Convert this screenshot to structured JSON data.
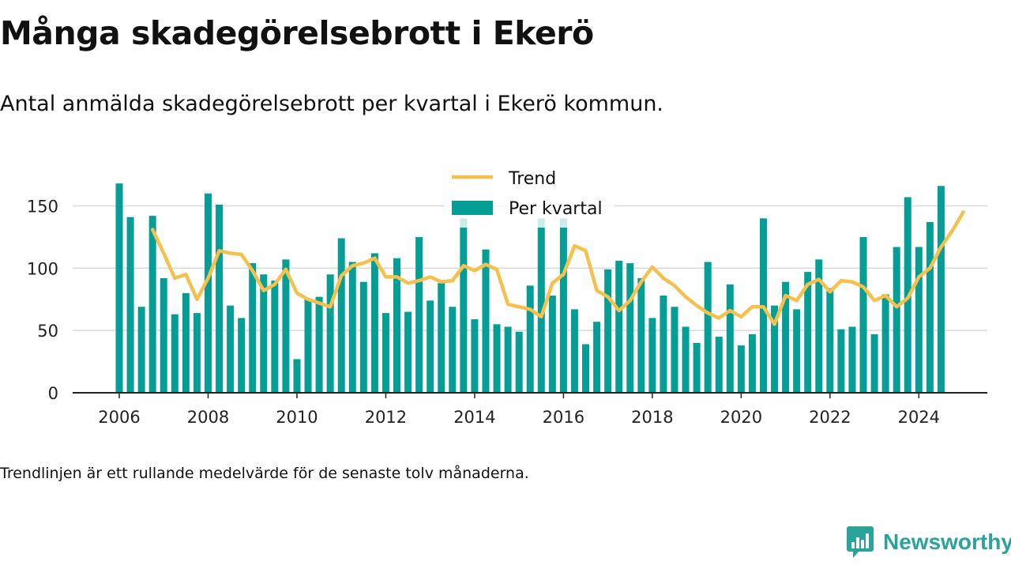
{
  "title": "Många skadegörelsebrott i Ekerö",
  "subtitle": "Antal anmälda skadegörelsebrott per kvartal i Ekerö kommun.",
  "footnote": "Trendlinjen är ett rullande medelvärde för de senaste tolv månaderna.",
  "logo": {
    "text": "Newsworthy",
    "icon": "bar-chart-icon"
  },
  "colors": {
    "bars": "#049e96",
    "trend": "#f5c04c",
    "grid": "#d9d9d9",
    "axis": "#222222",
    "logo": "#2aa39a"
  },
  "chart_data": {
    "type": "bar",
    "title": "Många skadegörelsebrott i Ekerö",
    "xlabel": "",
    "ylabel": "",
    "ylim": [
      0,
      170
    ],
    "yticks": [
      0,
      50,
      100,
      150
    ],
    "xtick_labels": [
      "2006",
      "2008",
      "2010",
      "2012",
      "2014",
      "2016",
      "2018",
      "2020",
      "2022",
      "2024"
    ],
    "legend_position": "top-center",
    "grid": true,
    "x_start": {
      "year": 2006,
      "quarter": 1
    },
    "series": [
      {
        "name": "Per kvartal",
        "kind": "bar",
        "color": "#049e96",
        "values": [
          168,
          141,
          69,
          142,
          92,
          63,
          80,
          64,
          160,
          151,
          70,
          60,
          104,
          95,
          90,
          107,
          27,
          75,
          77,
          95,
          124,
          105,
          89,
          112,
          64,
          108,
          65,
          125,
          74,
          88,
          69,
          140,
          59,
          115,
          55,
          53,
          49,
          86,
          140,
          78,
          140,
          67,
          39,
          57,
          99,
          106,
          104,
          92,
          60,
          78,
          69,
          53,
          40,
          105,
          45,
          87,
          38,
          47,
          140,
          70,
          89,
          67,
          97,
          107,
          84,
          51,
          53,
          125,
          47,
          79,
          117,
          157,
          117,
          137,
          166
        ]
      },
      {
        "name": "Trend",
        "kind": "line",
        "color": "#f5c04c",
        "start_index": 3,
        "values": [
          131,
          112,
          92,
          95,
          75,
          92,
          114,
          112,
          111,
          98,
          82,
          87,
          99,
          80,
          75,
          72,
          69,
          94,
          102,
          104,
          108,
          93,
          93,
          88,
          90,
          93,
          89,
          90,
          102,
          98,
          103,
          99,
          71,
          69,
          67,
          61,
          88,
          95,
          118,
          114,
          82,
          77,
          66,
          74,
          89,
          101,
          92,
          86,
          77,
          70,
          64,
          60,
          66,
          61,
          69,
          69,
          55,
          78,
          74,
          87,
          91,
          81,
          90,
          89,
          85,
          74,
          78,
          69,
          76,
          93,
          100,
          117,
          130,
          145
        ]
      }
    ]
  }
}
